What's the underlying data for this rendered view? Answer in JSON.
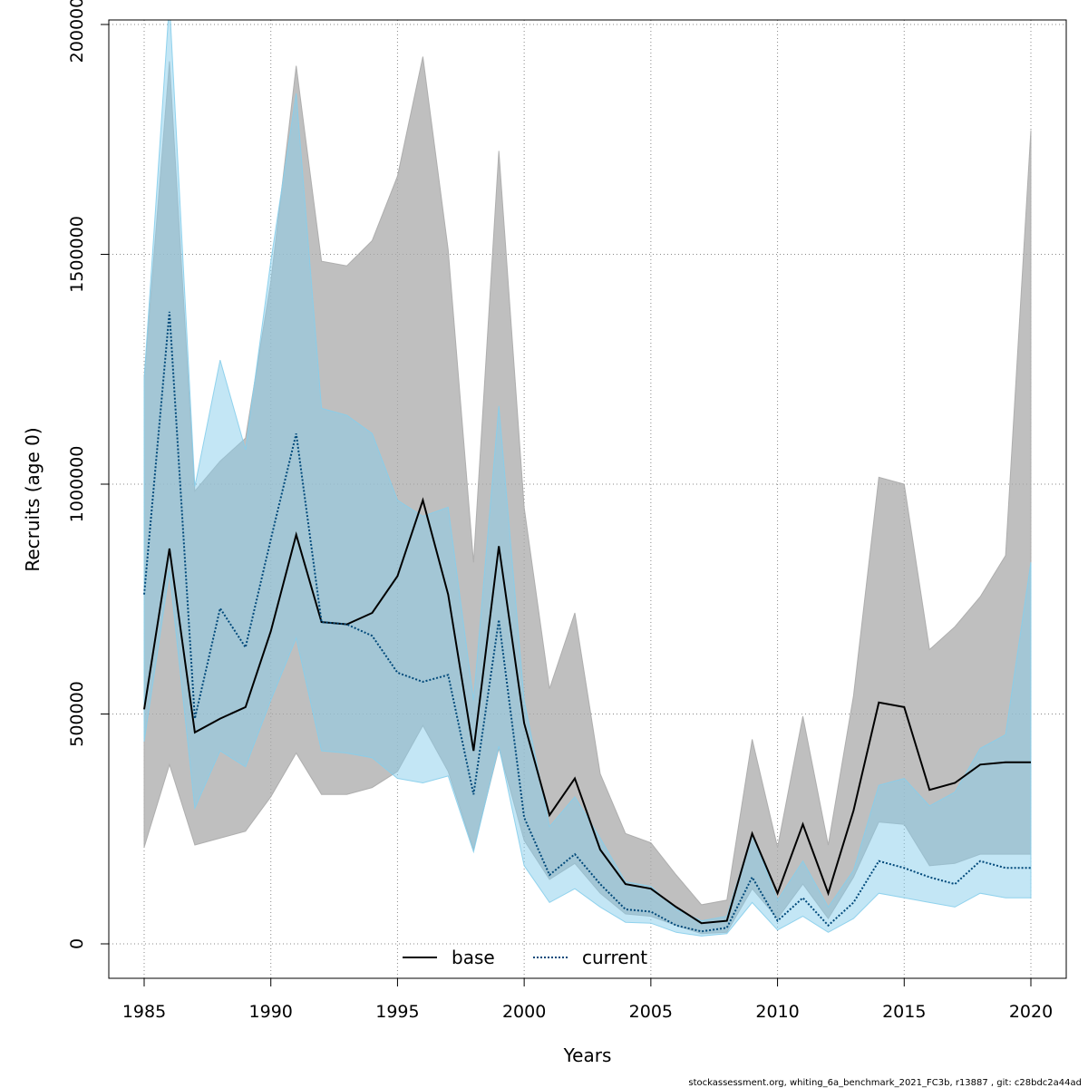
{
  "chart_data": {
    "type": "line",
    "title": "",
    "xlabel": "Years",
    "ylabel": "Recruits (age 0)",
    "xlim": [
      1985,
      2020
    ],
    "ylim": [
      0,
      2000000
    ],
    "x_ticks": [
      "1985",
      "1990",
      "1995",
      "2000",
      "2005",
      "2010",
      "2015",
      "2020"
    ],
    "y_ticks": [
      "0",
      "500000",
      "1000000",
      "1500000",
      "2000000"
    ],
    "grid": true,
    "legend_position": "bottom-center",
    "x": [
      1985,
      1986,
      1987,
      1988,
      1989,
      1990,
      1991,
      1992,
      1993,
      1994,
      1995,
      1996,
      1997,
      1998,
      1999,
      2000,
      2001,
      2002,
      2003,
      2004,
      2005,
      2006,
      2007,
      2008,
      2009,
      2010,
      2011,
      2012,
      2013,
      2014,
      2015,
      2016,
      2017,
      2018,
      2019,
      2020
    ],
    "series": [
      {
        "name": "base",
        "color": "#000000",
        "line_style": "solid",
        "band_color": "#aaaaaa",
        "values": [
          510000,
          860000,
          460000,
          490000,
          515000,
          680000,
          890000,
          700000,
          695000,
          720000,
          800000,
          965000,
          760000,
          420000,
          865000,
          480000,
          280000,
          360000,
          205000,
          130000,
          120000,
          80000,
          45000,
          50000,
          240000,
          110000,
          260000,
          110000,
          290000,
          525000,
          515000,
          335000,
          350000,
          390000,
          395000,
          395000
        ],
        "lower": [
          210000,
          390000,
          215000,
          230000,
          245000,
          320000,
          415000,
          325000,
          325000,
          340000,
          375000,
          475000,
          375000,
          205000,
          425000,
          225000,
          140000,
          175000,
          110000,
          65000,
          60000,
          40000,
          22000,
          25000,
          120000,
          55000,
          130000,
          55000,
          145000,
          265000,
          260000,
          170000,
          175000,
          195000,
          195000,
          195000
        ],
        "upper": [
          1230000,
          1920000,
          985000,
          1050000,
          1100000,
          1440000,
          1910000,
          1485000,
          1475000,
          1530000,
          1670000,
          1930000,
          1510000,
          830000,
          1725000,
          950000,
          555000,
          720000,
          370000,
          240000,
          220000,
          150000,
          85000,
          95000,
          445000,
          210000,
          495000,
          215000,
          540000,
          1015000,
          1000000,
          640000,
          690000,
          755000,
          845000,
          1770000
        ]
      },
      {
        "name": "current",
        "color": "#00497a",
        "line_style": "dotted",
        "band_color": "#87ceeb",
        "values": [
          760000,
          1375000,
          490000,
          730000,
          645000,
          880000,
          1110000,
          700000,
          695000,
          670000,
          590000,
          570000,
          585000,
          325000,
          705000,
          275000,
          150000,
          195000,
          130000,
          75000,
          70000,
          40000,
          27000,
          35000,
          145000,
          50000,
          100000,
          40000,
          90000,
          180000,
          165000,
          145000,
          130000,
          180000,
          165000,
          165000
        ],
        "lower": [
          440000,
          810000,
          295000,
          420000,
          385000,
          530000,
          665000,
          420000,
          415000,
          405000,
          360000,
          350000,
          365000,
          200000,
          430000,
          170000,
          90000,
          120000,
          80000,
          47000,
          45000,
          25000,
          17000,
          22000,
          90000,
          30000,
          60000,
          25000,
          55000,
          110000,
          100000,
          90000,
          80000,
          110000,
          100000,
          100000
        ],
        "upper": [
          1230000,
          2050000,
          995000,
          1270000,
          1075000,
          1485000,
          1850000,
          1165000,
          1150000,
          1110000,
          965000,
          930000,
          950000,
          530000,
          1170000,
          530000,
          255000,
          320000,
          230000,
          135000,
          125000,
          75000,
          50000,
          60000,
          240000,
          95000,
          180000,
          80000,
          160000,
          345000,
          360000,
          300000,
          330000,
          425000,
          455000,
          830000
        ]
      }
    ]
  },
  "footer": "stockassessment.org, whiting_6a_benchmark_2021_FC3b, r13887 , git: c28bdc2a44ad"
}
